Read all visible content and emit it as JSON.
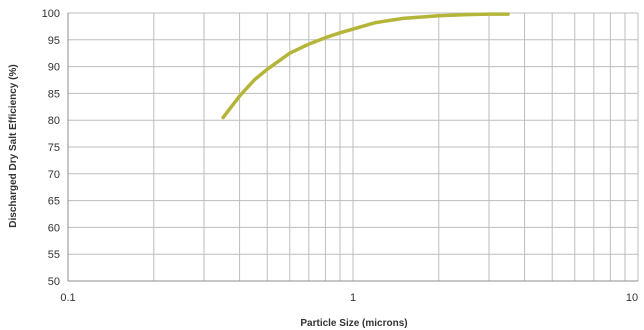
{
  "chart_data": {
    "type": "line",
    "title": "",
    "xlabel": "Particle Size (microns)",
    "ylabel": "Discharged Dry Salt Efficiency (%)",
    "xscale": "log",
    "xlim": [
      0.1,
      10
    ],
    "ylim": [
      50,
      100
    ],
    "x_ticks": [
      "0.1",
      "1",
      "10"
    ],
    "y_ticks": [
      "50",
      "55",
      "60",
      "65",
      "70",
      "75",
      "80",
      "85",
      "90",
      "95",
      "100"
    ],
    "grid": true,
    "legend": "none",
    "series": [
      {
        "color": "#b5b53a",
        "x": [
          0.35,
          0.4,
          0.45,
          0.5,
          0.6,
          0.7,
          0.8,
          0.9,
          1.0,
          1.2,
          1.5,
          2.0,
          2.5,
          3.0,
          3.5
        ],
        "y": [
          80.5,
          84.5,
          87.5,
          89.5,
          92.5,
          94.2,
          95.4,
          96.3,
          97.0,
          98.2,
          99.0,
          99.5,
          99.7,
          99.8,
          99.8
        ]
      }
    ]
  }
}
